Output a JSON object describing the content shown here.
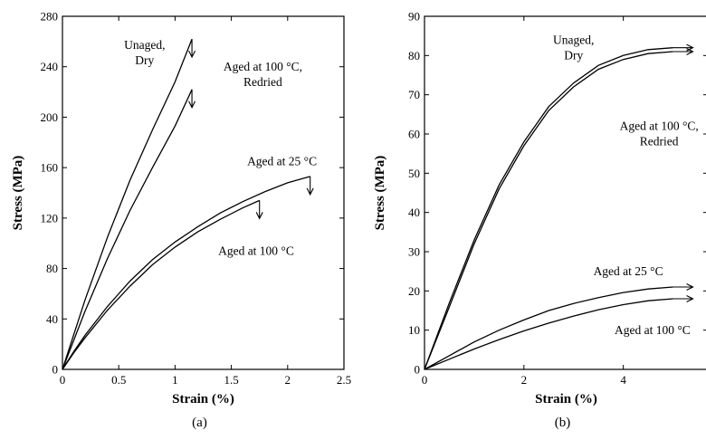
{
  "chart_data": [
    {
      "panel_label": "(a)",
      "type": "line",
      "xlabel": "Strain (%)",
      "ylabel": "Stress (MPa)",
      "xlim": [
        0,
        2.5
      ],
      "ylim": [
        0,
        280
      ],
      "xticks": [
        "0",
        "0.5",
        "1",
        "1.5",
        "2",
        "2.5"
      ],
      "xtick_values": [
        0,
        0.5,
        1,
        1.5,
        2,
        2.5
      ],
      "yticks": [
        "0",
        "40",
        "80",
        "120",
        "160",
        "200",
        "240",
        "280"
      ],
      "ytick_values": [
        0,
        40,
        80,
        120,
        160,
        200,
        240,
        280
      ],
      "grid": false,
      "series": [
        {
          "name": "Unaged, Dry",
          "end_marker": "down",
          "x": [
            0,
            0.2,
            0.4,
            0.6,
            0.8,
            1.0,
            1.15
          ],
          "y": [
            0,
            55,
            105,
            150,
            190,
            228,
            262
          ]
        },
        {
          "name": "Aged at 100 °C, Redried",
          "end_marker": "down",
          "x": [
            0,
            0.2,
            0.4,
            0.6,
            0.8,
            1.0,
            1.15
          ],
          "y": [
            0,
            46,
            88,
            126,
            160,
            193,
            222
          ]
        },
        {
          "name": "Aged at 25 °C",
          "end_marker": "down",
          "x": [
            0,
            0.1,
            0.2,
            0.4,
            0.6,
            0.8,
            1.0,
            1.2,
            1.4,
            1.6,
            1.8,
            2.0,
            2.2
          ],
          "y": [
            0,
            14,
            27,
            50,
            70,
            87,
            101,
            113,
            124,
            133,
            141,
            148,
            153
          ]
        },
        {
          "name": "Aged at 100 °C",
          "end_marker": "down",
          "x": [
            0,
            0.1,
            0.2,
            0.4,
            0.6,
            0.8,
            1.0,
            1.2,
            1.4,
            1.6,
            1.75
          ],
          "y": [
            0,
            13,
            25,
            47,
            66,
            83,
            97,
            109,
            119,
            128,
            134
          ]
        }
      ],
      "annotations": [
        {
          "lines": [
            "Unaged,",
            "Dry"
          ],
          "x": 0.73,
          "y": 254,
          "anchor": "middle"
        },
        {
          "lines": [
            "Aged at 100 °C,",
            "Redried"
          ],
          "x": 1.78,
          "y": 237,
          "anchor": "middle"
        },
        {
          "lines": [
            "Aged at 25 °C"
          ],
          "x": 1.95,
          "y": 162,
          "anchor": "middle"
        },
        {
          "lines": [
            "Aged at 100 °C"
          ],
          "x": 1.72,
          "y": 91,
          "anchor": "middle"
        }
      ]
    },
    {
      "panel_label": "(b)",
      "type": "line",
      "xlabel": "Strain (%)",
      "ylabel": "Stress (MPa)",
      "xlim": [
        0,
        5.7
      ],
      "ylim": [
        0,
        90
      ],
      "xticks": [
        "0",
        "2",
        "4"
      ],
      "xtick_values": [
        0,
        2,
        4
      ],
      "yticks": [
        "0",
        "10",
        "20",
        "30",
        "40",
        "50",
        "60",
        "70",
        "80",
        "90"
      ],
      "ytick_values": [
        0,
        10,
        20,
        30,
        40,
        50,
        60,
        70,
        80,
        90
      ],
      "grid": false,
      "series": [
        {
          "name": "Unaged, Dry",
          "end_marker": "right",
          "x": [
            0,
            0.5,
            1.0,
            1.5,
            2.0,
            2.5,
            3.0,
            3.5,
            4.0,
            4.5,
            5.0
          ],
          "y": [
            0,
            17,
            33,
            47,
            58,
            67,
            73,
            77.5,
            80,
            81.5,
            82
          ]
        },
        {
          "name": "Aged at 100 °C, Redried",
          "end_marker": "right",
          "x": [
            0,
            0.5,
            1.0,
            1.5,
            2.0,
            2.5,
            3.0,
            3.5,
            4.0,
            4.5,
            5.0
          ],
          "y": [
            0,
            16,
            32,
            46,
            57,
            66,
            72,
            76.5,
            79,
            80.5,
            81
          ]
        },
        {
          "name": "Aged at 25 °C",
          "end_marker": "right",
          "x": [
            0,
            0.5,
            1.0,
            1.5,
            2.0,
            2.5,
            3.0,
            3.5,
            4.0,
            4.5,
            5.0
          ],
          "y": [
            0,
            3.5,
            7,
            10,
            12.6,
            15,
            16.8,
            18.3,
            19.6,
            20.5,
            21
          ]
        },
        {
          "name": "Aged at 100 °C",
          "end_marker": "right",
          "x": [
            0,
            0.5,
            1.0,
            1.5,
            2.0,
            2.5,
            3.0,
            3.5,
            4.0,
            4.5,
            5.0
          ],
          "y": [
            0,
            2.6,
            5.2,
            7.6,
            9.8,
            11.8,
            13.6,
            15.2,
            16.5,
            17.5,
            18
          ]
        }
      ],
      "annotations": [
        {
          "lines": [
            "Unaged,",
            "Dry"
          ],
          "x": 3.0,
          "y": 83,
          "anchor": "middle"
        },
        {
          "lines": [
            "Aged at 100 °C,",
            "Redried"
          ],
          "x": 4.72,
          "y": 61,
          "anchor": "middle"
        },
        {
          "lines": [
            "Aged at 25 °C"
          ],
          "x": 4.8,
          "y": 24,
          "anchor": "end"
        },
        {
          "lines": [
            "Aged at 100 °C"
          ],
          "x": 5.35,
          "y": 9,
          "anchor": "end"
        }
      ]
    }
  ]
}
